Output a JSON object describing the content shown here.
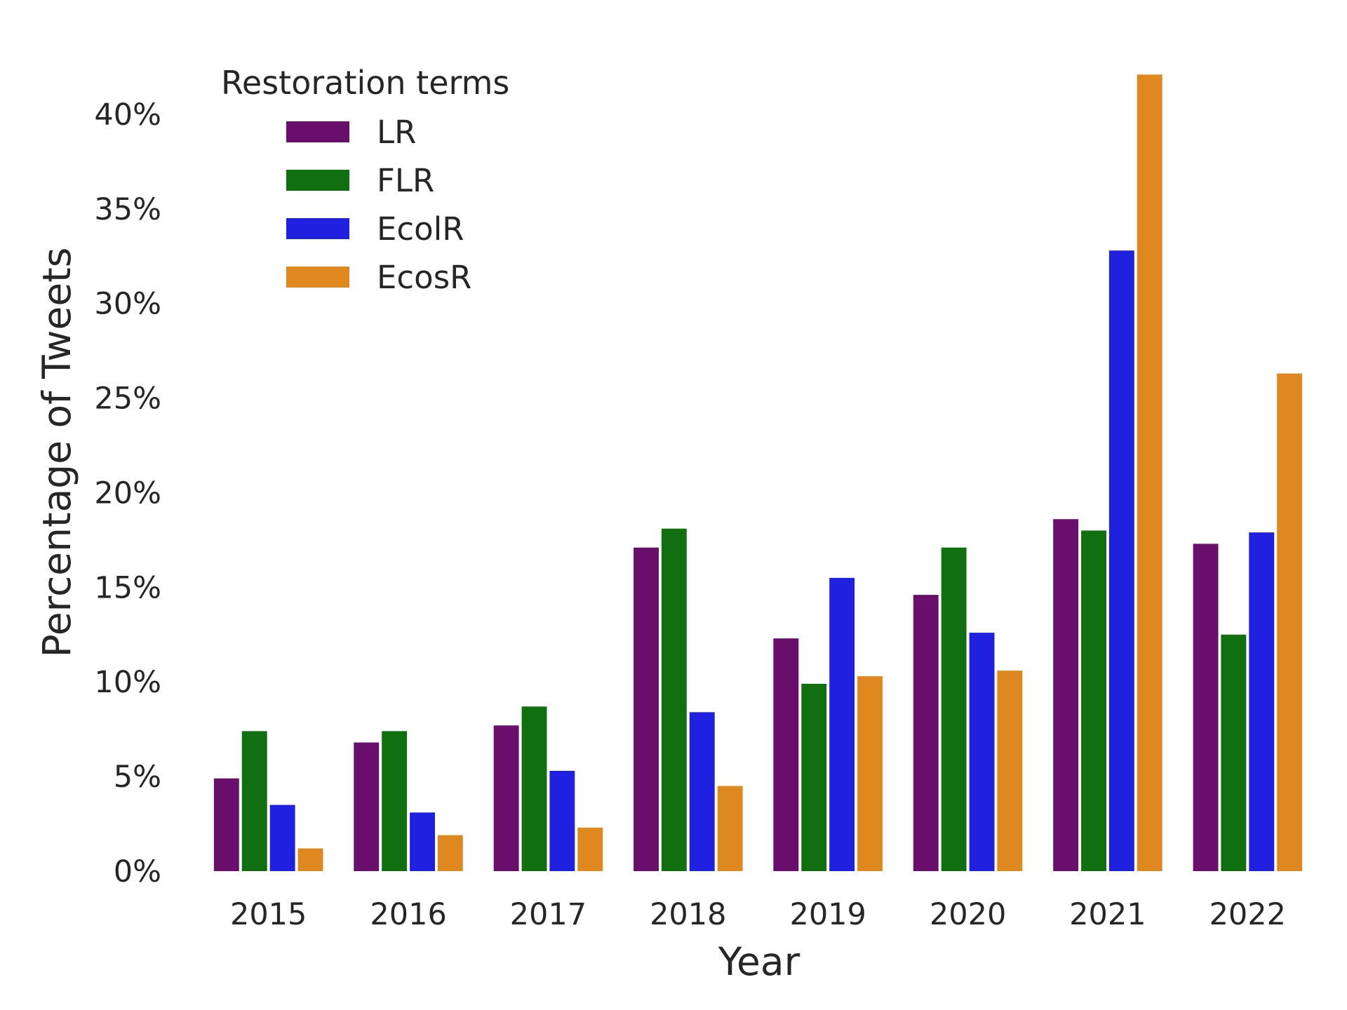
{
  "chart_data": {
    "type": "bar",
    "xlabel": "Year",
    "ylabel": "Percentage of Tweets",
    "categories": [
      "2015",
      "2016",
      "2017",
      "2018",
      "2019",
      "2020",
      "2021",
      "2022"
    ],
    "ylim": [
      0,
      42
    ],
    "yticks": [
      0,
      5,
      10,
      15,
      20,
      25,
      30,
      35,
      40
    ],
    "ytick_labels": [
      "0%",
      "5%",
      "10%",
      "15%",
      "20%",
      "25%",
      "30%",
      "35%",
      "40%"
    ],
    "grid": false,
    "legend": {
      "title": "Restoration terms",
      "placement": "top-left"
    },
    "series": [
      {
        "name": "LR",
        "color": "#6a0e6c",
        "values": [
          4.9,
          6.8,
          7.7,
          17.1,
          12.3,
          14.6,
          18.6,
          17.3
        ]
      },
      {
        "name": "FLR",
        "color": "#10700f",
        "values": [
          7.4,
          7.4,
          8.7,
          18.1,
          9.9,
          17.1,
          18.0,
          12.5
        ]
      },
      {
        "name": "EcolR",
        "color": "#2020e0",
        "values": [
          3.5,
          3.1,
          5.3,
          8.4,
          15.5,
          12.6,
          32.8,
          17.9
        ]
      },
      {
        "name": "EcosR",
        "color": "#e08820",
        "values": [
          1.2,
          1.9,
          2.3,
          4.5,
          10.3,
          10.6,
          42.1,
          26.3
        ]
      }
    ]
  }
}
